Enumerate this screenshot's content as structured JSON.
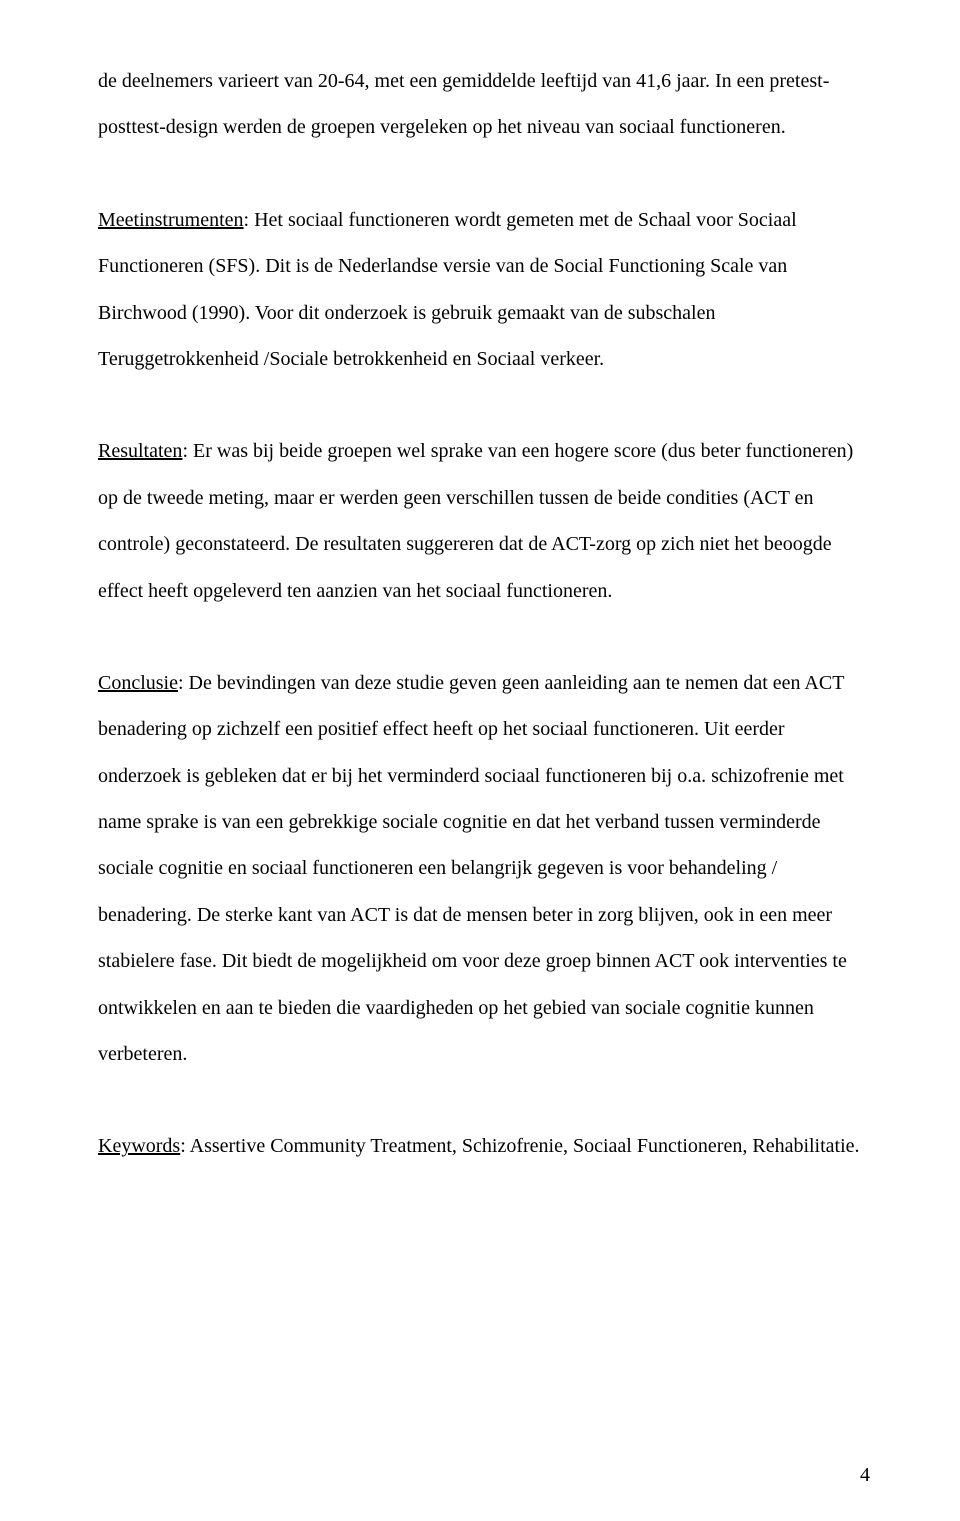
{
  "document": {
    "font_family": "Times New Roman",
    "font_size_pt": 12,
    "line_height": 2.32,
    "text_color": "#000000",
    "background_color": "#ffffff",
    "page_number": "4",
    "paragraphs": [
      {
        "heading": "",
        "text": "de deelnemers varieert van 20-64, met een gemiddelde leeftijd van 41,6 jaar. In een pretest-posttest-design werden de groepen vergeleken op het niveau van sociaal functioneren."
      },
      {
        "heading": "Meetinstrumenten",
        "text": ": Het sociaal functioneren wordt gemeten met de  Schaal voor Sociaal Functioneren (SFS). Dit is de Nederlandse versie van de Social Functioning Scale van Birchwood (1990). Voor dit onderzoek is gebruik gemaakt van de subschalen Teruggetrokkenheid /Sociale betrokkenheid en Sociaal verkeer."
      },
      {
        "heading": "Resultaten",
        "text": ": Er was bij beide groepen wel sprake van een hogere score (dus beter functioneren) op de tweede meting, maar er werden geen verschillen tussen de beide condities (ACT en controle) geconstateerd. De resultaten suggereren dat de ACT-zorg op zich niet het beoogde effect heeft opgeleverd ten aanzien van het sociaal functioneren."
      },
      {
        "heading": "Conclusie",
        "text": ": De bevindingen van deze studie geven geen aanleiding aan te nemen dat een ACT benadering op zichzelf een positief effect heeft op het sociaal functioneren. Uit eerder onderzoek is gebleken dat er bij het verminderd sociaal functioneren bij o.a. schizofrenie  met name sprake is van een gebrekkige sociale cognitie en dat het verband tussen verminderde sociale cognitie en sociaal functioneren een belangrijk gegeven is voor behandeling / benadering. De sterke kant van ACT is dat de mensen beter in zorg blijven, ook in een meer stabielere fase. Dit biedt de mogelijkheid om voor deze groep binnen ACT ook interventies te ontwikkelen en aan te bieden die vaardigheden op het gebied van sociale cognitie kunnen verbeteren."
      },
      {
        "heading": "Keywords",
        "text": ": Assertive Community Treatment, Schizofrenie, Sociaal Functioneren, Rehabilitatie."
      }
    ]
  }
}
